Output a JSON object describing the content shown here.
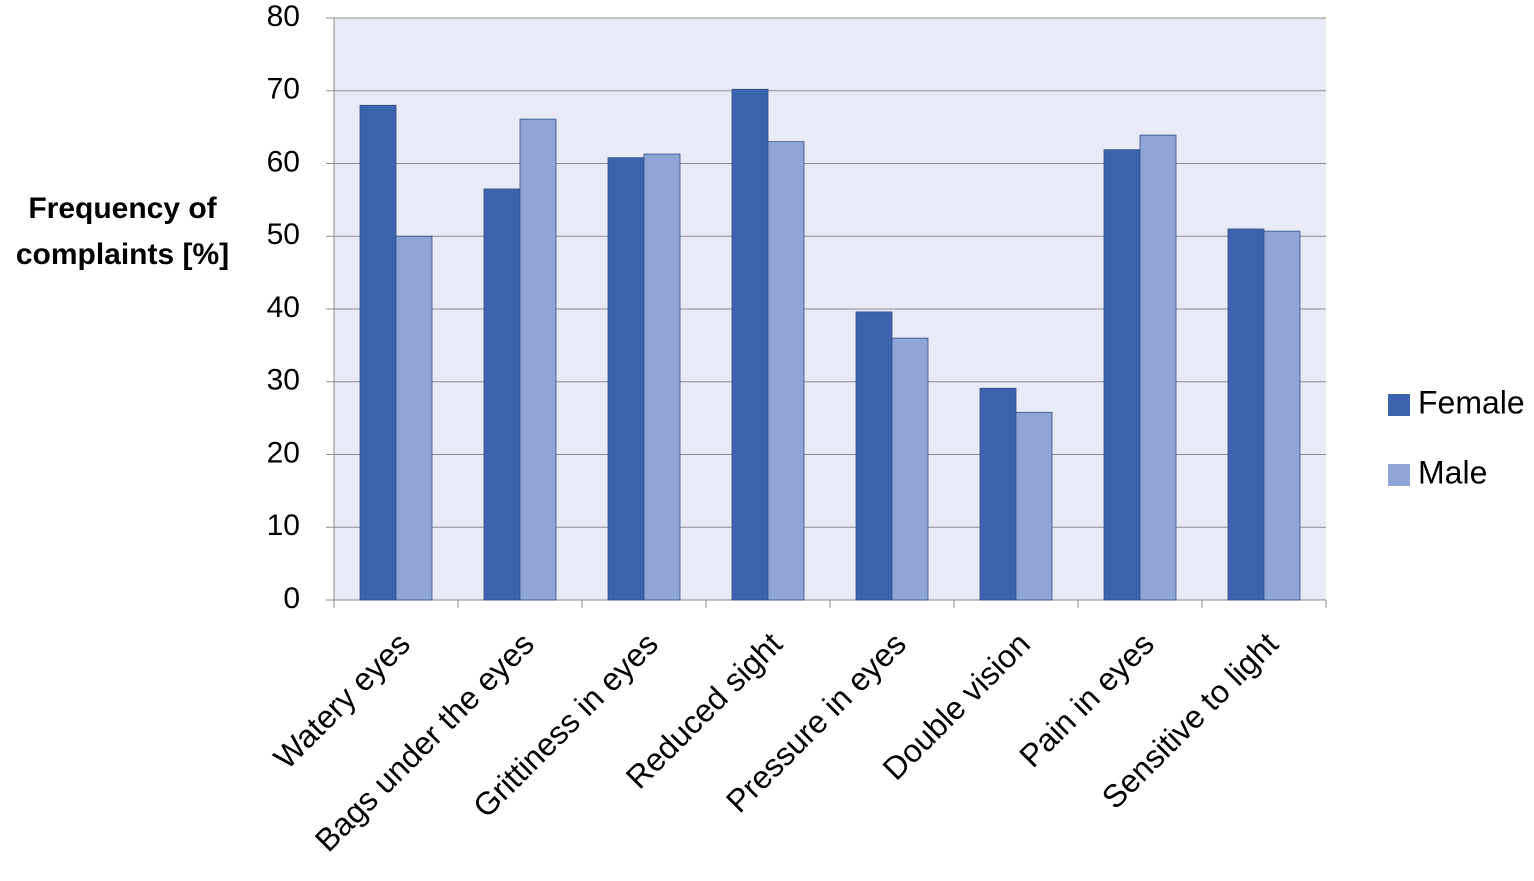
{
  "chart_data": {
    "type": "bar",
    "y_label": "Frequency of complaints [%]",
    "categories": [
      "Watery eyes",
      "Bags under the eyes",
      "Grittiness in eyes",
      "Reduced sight",
      "Pressure in eyes",
      "Double vision",
      "Pain in eyes",
      "Sensitive to light"
    ],
    "series": [
      {
        "name": "Female",
        "color": "#3c64ad",
        "values": [
          68,
          56.5,
          60.8,
          70.2,
          39.6,
          29.1,
          61.9,
          51
        ]
      },
      {
        "name": "Male",
        "color": "#8fa5d6",
        "values": [
          50,
          66.1,
          61.3,
          63,
          36,
          25.8,
          63.9,
          50.7
        ]
      }
    ],
    "ylim": [
      0,
      80
    ],
    "yticks": [
      0,
      10,
      20,
      30,
      40,
      50,
      60,
      70,
      80
    ],
    "grid": true,
    "legend": "right"
  }
}
